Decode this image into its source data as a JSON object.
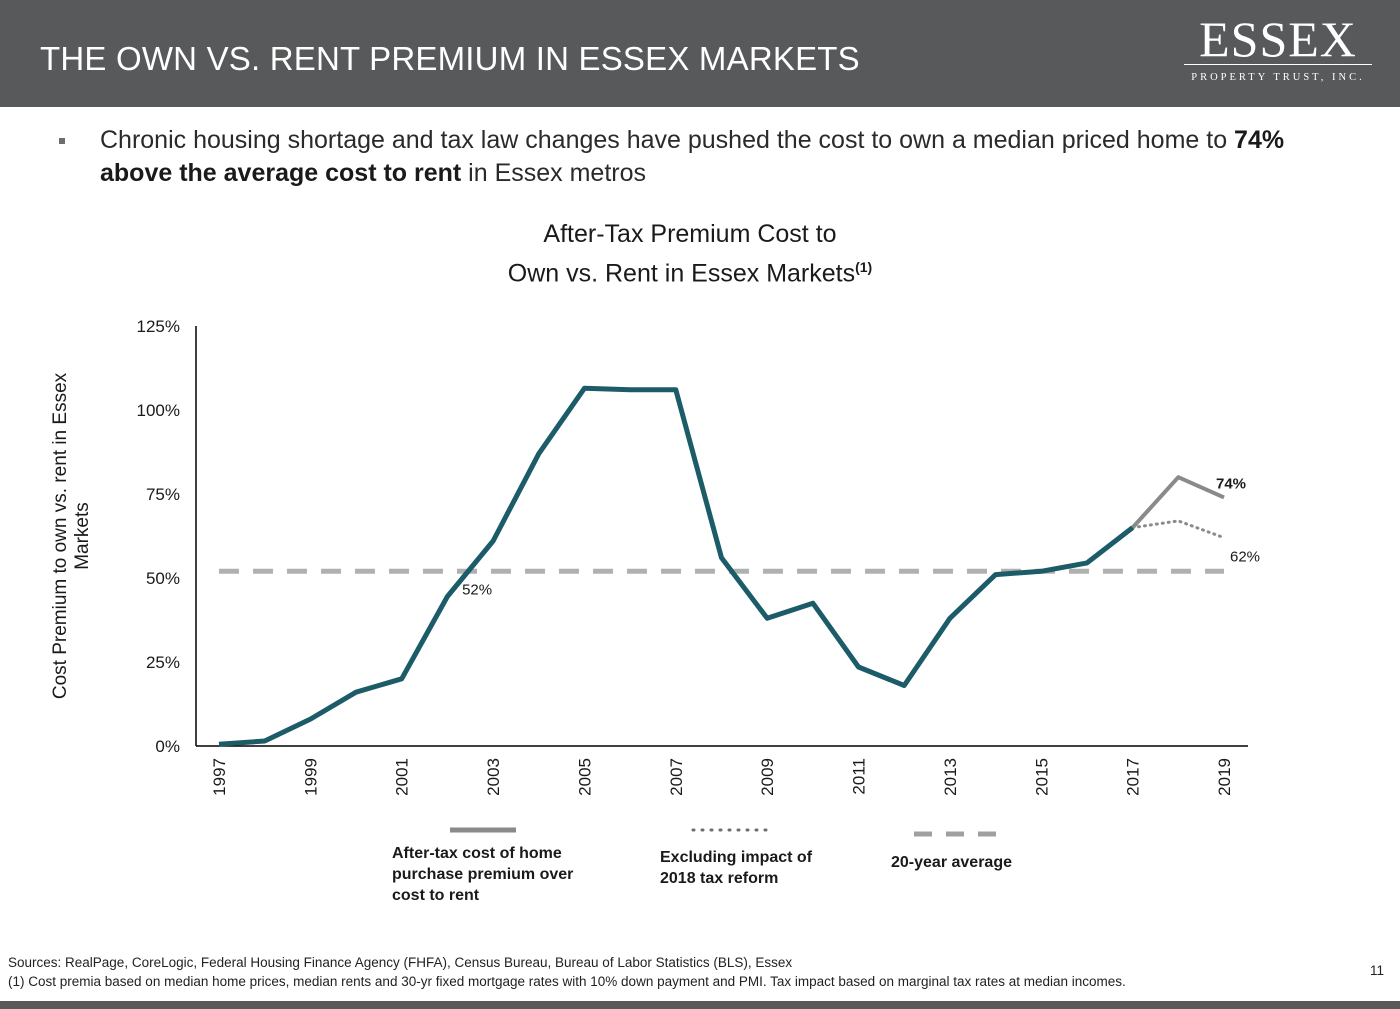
{
  "header": {
    "title": "THE OWN VS. RENT PREMIUM IN ESSEX MARKETS",
    "logo_name": "ESSEX",
    "logo_subtitle": "PROPERTY TRUST, INC."
  },
  "bullet": {
    "text_before": "Chronic housing shortage and tax law changes have pushed the cost to own a median priced home to ",
    "text_bold": "74% above the average cost to rent",
    "text_after": " in Essex metros"
  },
  "chart_title": {
    "line1": "After-Tax Premium Cost to",
    "line2": "Own vs. Rent in Essex Markets",
    "footnote_marker": "(1)"
  },
  "chart_data": {
    "type": "line",
    "title": "After-Tax Premium Cost to Own vs. Rent in Essex Markets(1)",
    "xlabel": "",
    "ylabel": "Cost Premium to own vs. rent in Essex Markets",
    "x_ticks": [
      "1997",
      "1999",
      "2001",
      "2003",
      "2005",
      "2007",
      "2009",
      "2011",
      "2013",
      "2015",
      "2017",
      "2019"
    ],
    "y_ticks": [
      "0%",
      "25%",
      "50%",
      "75%",
      "100%",
      "125%"
    ],
    "ylim": [
      0,
      125
    ],
    "xlim": [
      1997,
      2019
    ],
    "grid": false,
    "series": [
      {
        "name": "After-tax cost of home purchase premium over cost to rent",
        "color": "#1b5c68",
        "style": "solid",
        "x": [
          1997,
          1998,
          1999,
          2000,
          2001,
          2002,
          2003,
          2004,
          2005,
          2006,
          2007,
          2008,
          2009,
          2010,
          2011,
          2012,
          2013,
          2014,
          2015,
          2016,
          2017
        ],
        "y": [
          0.5,
          1.5,
          8,
          16,
          20,
          44.5,
          61,
          87,
          106.5,
          106,
          106,
          56,
          38,
          42.5,
          23.5,
          18,
          38,
          51,
          52,
          54.5,
          65
        ]
      },
      {
        "name": "After-tax cost of home purchase premium over cost to rent",
        "color": "#8a8a8a",
        "style": "solid",
        "x": [
          2017,
          2018,
          2019
        ],
        "y": [
          65,
          80,
          74
        ]
      },
      {
        "name": "Excluding impact of 2018 tax reform",
        "color": "#8a8a8a",
        "style": "dotted",
        "x": [
          2017,
          2018,
          2019
        ],
        "y": [
          65,
          67,
          62
        ]
      },
      {
        "name": "20-year average",
        "color": "#b0b0b0",
        "style": "dashed",
        "x": [
          1997,
          2019
        ],
        "y": [
          52,
          52
        ]
      }
    ],
    "annotations": [
      {
        "text": "74%",
        "x": 2019,
        "y": 74,
        "bold": true
      },
      {
        "text": "62%",
        "x": 2019,
        "y": 62,
        "bold": false
      },
      {
        "text": "52%",
        "x": 2003,
        "y": 52,
        "bold": false
      }
    ],
    "legend_position": "bottom"
  },
  "legend": {
    "item1": "After-tax cost of home purchase premium over cost to rent",
    "item2": "Excluding impact of 2018 tax reform",
    "item3": "20-year average"
  },
  "footer": {
    "sources": "Sources: RealPage, CoreLogic, Federal Housing Finance Agency (FHFA), Census Bureau, Bureau of Labor Statistics (BLS), Essex",
    "footnote": "(1) Cost premia based on median home prices, median rents and 30-yr fixed mortgage rates with 10% down payment and PMI. Tax impact based on marginal tax rates at median incomes.",
    "page_number": "11"
  }
}
